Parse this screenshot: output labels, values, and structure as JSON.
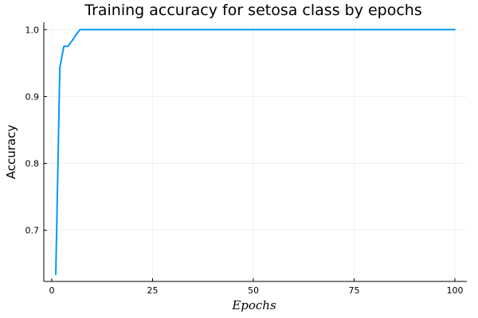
{
  "chart_data": {
    "type": "line",
    "title": "Training accuracy for setosa class by epochs",
    "xlabel": "Epochs",
    "ylabel": "Accuracy",
    "xlim": [
      -1.97,
      102.97
    ],
    "ylim": [
      0.6236,
      1.011
    ],
    "x_ticks": [
      0,
      25,
      50,
      75,
      100
    ],
    "y_ticks": [
      0.7,
      0.8,
      0.9,
      1.0
    ],
    "x_tick_labels": [
      "0",
      "25",
      "50",
      "75",
      "100"
    ],
    "y_tick_labels": [
      "0.7",
      "0.8",
      "0.9",
      "1.0"
    ],
    "grid": true,
    "legend": "none",
    "series": [
      {
        "color": "#009AFA",
        "x": [
          1,
          2,
          3,
          4,
          5,
          6,
          7,
          8,
          100
        ],
        "y": [
          0.634,
          0.943,
          0.975,
          0.975,
          0.983,
          0.992,
          1.0,
          1.0,
          1.0
        ]
      }
    ]
  }
}
